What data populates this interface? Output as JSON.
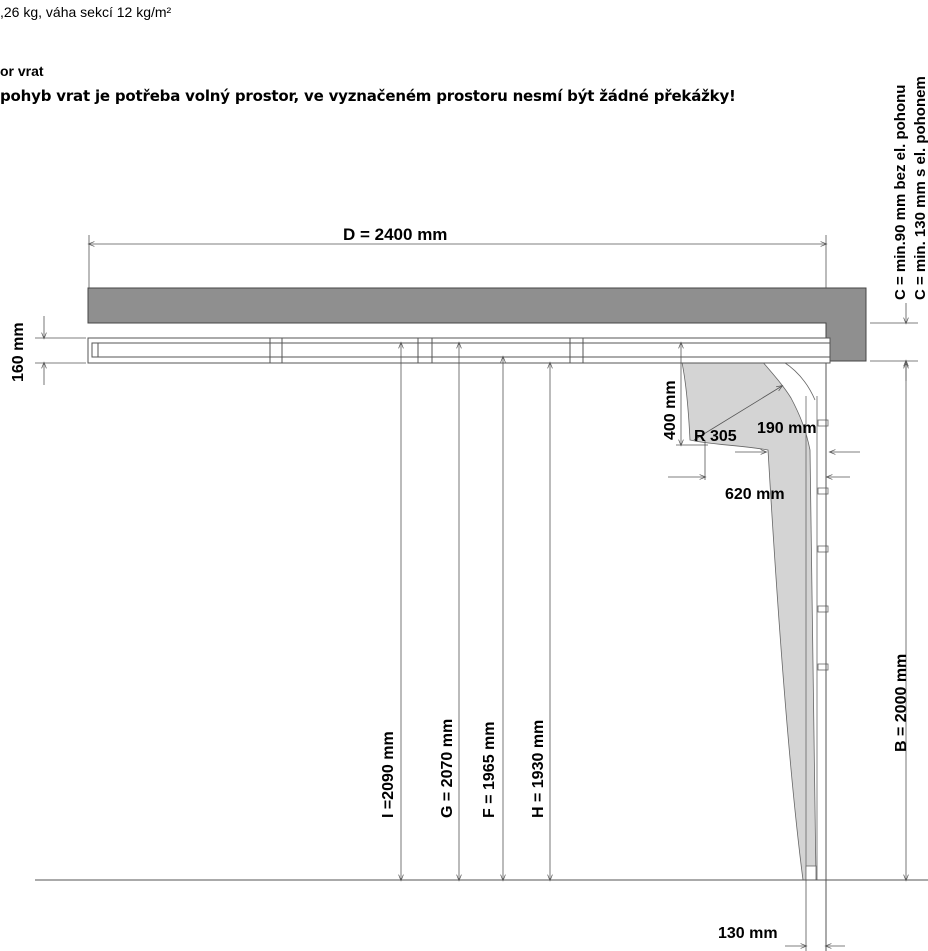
{
  "header": {
    "weight_line": ",26 kg, váha sekcí 12 kg/m²",
    "section_title": "or vrat",
    "warning": "pohyb vrat je potřeba volný prostor, ve vyznačeném prostoru nesmí být žádné překážky!"
  },
  "dimensions": {
    "D": "D = 2400  mm",
    "lintel_height": "160 mm",
    "I": "I =2090 mm",
    "G": "G = 2070 mm",
    "F": "F = 1965 mm",
    "H": "H = 1930 mm",
    "B": "B = 2000 mm",
    "radius": "R 305",
    "d400": "400 mm",
    "d190": "190 mm",
    "d620": "620 mm",
    "d130": "130 mm",
    "C_without_drive": "C = min.90 mm bez el. pohonu",
    "C_with_drive": "C = min. 130 mm s el. pohonem"
  },
  "colors": {
    "lintel": "#8f8f8f",
    "sweep_zone": "#d4d4d4",
    "line": "#555555"
  }
}
